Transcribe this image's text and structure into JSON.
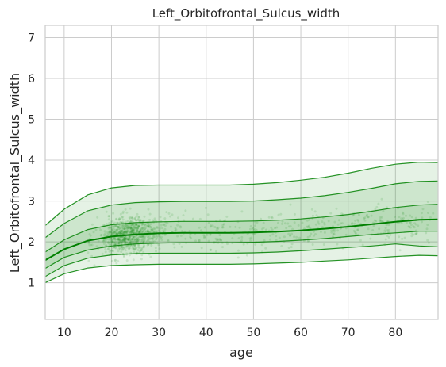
{
  "chart_data": {
    "type": "line",
    "title": "Left_Orbitofrontal_Sulcus_width",
    "xlabel": "age",
    "ylabel": "Left_Orbitofrontal_Sulcus_width",
    "xlim": [
      6,
      89
    ],
    "ylim": [
      0.1,
      7.3
    ],
    "xticks": [
      10,
      20,
      30,
      40,
      50,
      60,
      70,
      80
    ],
    "yticks": [
      1,
      2,
      3,
      4,
      5,
      6,
      7
    ],
    "grid": true,
    "color": "#008000",
    "x": [
      6,
      10,
      15,
      20,
      25,
      30,
      35,
      40,
      45,
      50,
      55,
      60,
      65,
      70,
      75,
      80,
      85,
      89
    ],
    "series": [
      {
        "values": [
          1.0,
          1.22,
          1.36,
          1.42,
          1.44,
          1.45,
          1.45,
          1.45,
          1.45,
          1.46,
          1.48,
          1.5,
          1.53,
          1.56,
          1.6,
          1.64,
          1.67,
          1.66
        ]
      },
      {
        "values": [
          1.15,
          1.42,
          1.6,
          1.68,
          1.71,
          1.72,
          1.72,
          1.72,
          1.72,
          1.73,
          1.75,
          1.78,
          1.82,
          1.86,
          1.9,
          1.95,
          1.9,
          1.88
        ]
      },
      {
        "values": [
          1.35,
          1.62,
          1.8,
          1.9,
          1.95,
          1.97,
          1.98,
          1.98,
          1.98,
          1.99,
          2.01,
          2.04,
          2.08,
          2.13,
          2.18,
          2.22,
          2.26,
          2.26
        ]
      },
      {
        "values": [
          1.55,
          1.82,
          2.03,
          2.13,
          2.18,
          2.21,
          2.22,
          2.22,
          2.22,
          2.23,
          2.25,
          2.28,
          2.32,
          2.37,
          2.43,
          2.49,
          2.54,
          2.55
        ]
      },
      {
        "values": [
          1.75,
          2.05,
          2.3,
          2.42,
          2.47,
          2.49,
          2.5,
          2.5,
          2.5,
          2.51,
          2.53,
          2.56,
          2.61,
          2.67,
          2.75,
          2.84,
          2.9,
          2.92
        ]
      },
      {
        "values": [
          2.1,
          2.45,
          2.76,
          2.9,
          2.96,
          2.98,
          2.99,
          2.99,
          2.99,
          3.0,
          3.03,
          3.07,
          3.13,
          3.21,
          3.31,
          3.42,
          3.48,
          3.49
        ]
      },
      {
        "values": [
          2.4,
          2.8,
          3.15,
          3.32,
          3.38,
          3.39,
          3.39,
          3.39,
          3.39,
          3.41,
          3.45,
          3.51,
          3.58,
          3.68,
          3.8,
          3.9,
          3.95,
          3.94
        ]
      }
    ],
    "median_series_index": 3,
    "scatter_points": 1200
  }
}
